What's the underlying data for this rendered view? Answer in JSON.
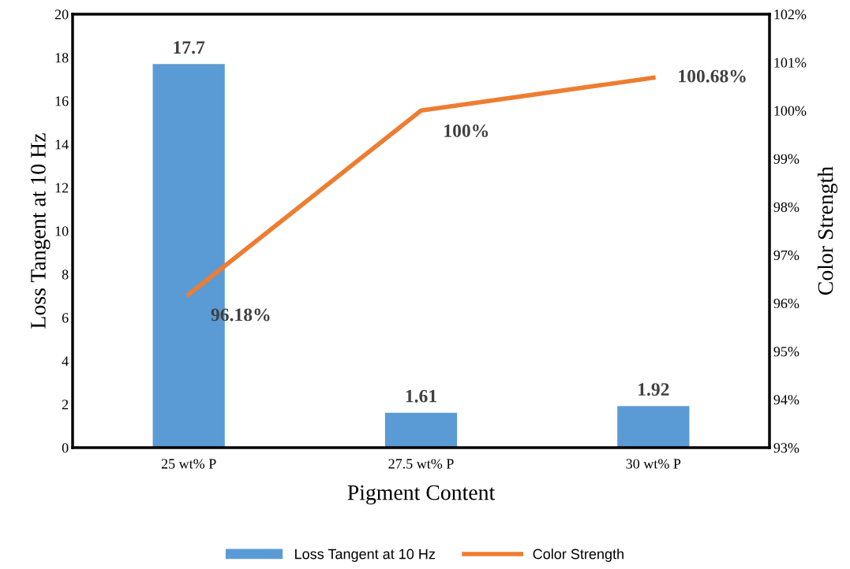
{
  "chart_data": {
    "type": "bar",
    "xlabel": "Pigment Content",
    "ylabel": "Loss Tangent at 10 Hz",
    "y2label": "Color Strength",
    "categories": [
      "25 wt% P",
      "27.5 wt% P",
      "30 wt% P"
    ],
    "series": [
      {
        "name": "Loss Tangent at 10 Hz",
        "color": "#5b9bd5",
        "values": [
          17.7,
          1.61,
          1.92
        ],
        "value_labels": [
          "17.7",
          "1.61",
          "1.92"
        ]
      },
      {
        "name": "Color Strength",
        "type": "line",
        "axis": "y2",
        "color": "#ed7d31",
        "values": [
          96.18,
          100,
          100.68
        ],
        "value_labels": [
          "96.18%",
          "100%",
          "100.68%"
        ]
      }
    ],
    "ylim": [
      0,
      20
    ],
    "yticks": [
      0,
      2,
      4,
      6,
      8,
      10,
      12,
      14,
      16,
      18,
      20
    ],
    "y2lim": [
      93,
      102
    ],
    "y2ticks": [
      {
        "value": 93,
        "label": "93%"
      },
      {
        "value": 94,
        "label": "94%"
      },
      {
        "value": 95,
        "label": "95%"
      },
      {
        "value": 96,
        "label": "96%"
      },
      {
        "value": 97,
        "label": "97%"
      },
      {
        "value": 98,
        "label": "98%"
      },
      {
        "value": 99,
        "label": "99%"
      },
      {
        "value": 100,
        "label": "100%"
      },
      {
        "value": 101,
        "label": "101%"
      },
      {
        "value": 102,
        "label": "102%"
      }
    ],
    "grid": false,
    "legend": "bottom",
    "marker": "none",
    "line_style": "solid"
  }
}
